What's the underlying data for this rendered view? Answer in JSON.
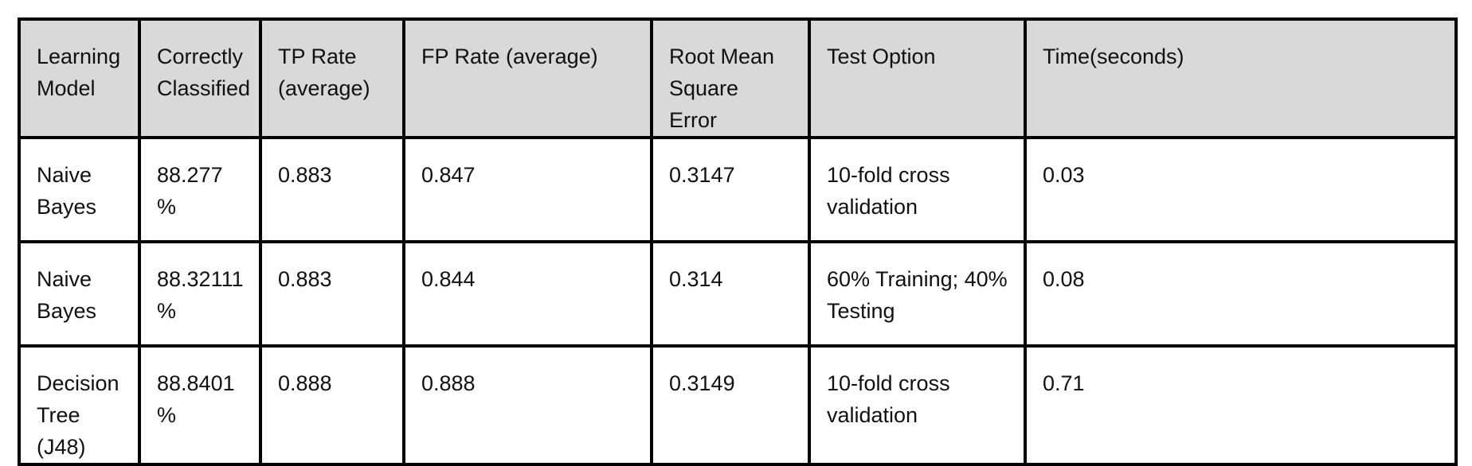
{
  "table": {
    "headers": [
      "Learning\nModel",
      "Correctly\nClassified",
      "TP Rate\n(average)",
      "FP Rate (average)",
      "Root Mean\nSquare Error",
      "Test Option",
      "Time(seconds)"
    ],
    "rows": [
      [
        "Naive\nBayes",
        "88.277  %",
        "0.883",
        "0.847",
        "0.3147",
        "10-fold cross\nvalidation",
        "0.03"
      ],
      [
        "Naive\nBayes",
        "88.32111\n%",
        "0.883",
        "0.844",
        "0.314",
        "60% Training; 40%\nTesting",
        "0.08"
      ],
      [
        "Decision\nTree (J48)",
        "88.8401\n%",
        "0.888",
        "0.888",
        " 0.3149",
        "10-fold cross\nvalidation",
        "0.71"
      ]
    ]
  },
  "colors": {
    "header_background": "#d9d9d9",
    "border": "#000000",
    "text": "#111111"
  }
}
